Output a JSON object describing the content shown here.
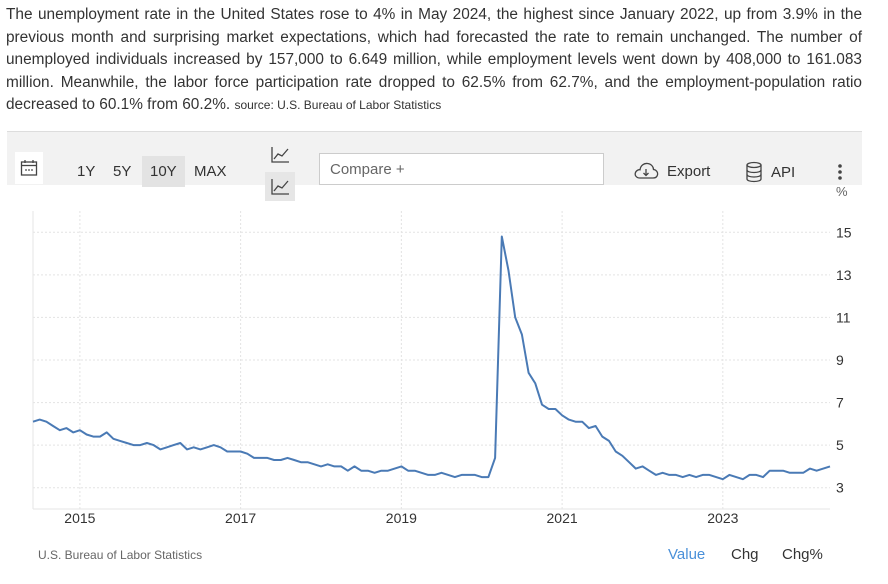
{
  "summary": {
    "text": "The unemployment rate in the United States rose to 4% in May 2024, the highest since January 2022, up from 3.9% in the previous month and surprising market expectations, which had forecasted the rate to remain unchanged. The number of unemployed individuals increased by 157,000 to 6.649 million, while employment levels went down by 408,000 to 161.083 million. Meanwhile, the labor force participation rate dropped to 62.5% from 62.7%, and the employment-population ratio decreased to 60.1% from 60.2%.",
    "source": "source: U.S. Bureau of Labor Statistics"
  },
  "toolbar": {
    "ranges": [
      "1Y",
      "5Y",
      "10Y",
      "MAX"
    ],
    "active_range": "10Y",
    "compare_placeholder": "Compare +",
    "export_label": "Export",
    "api_label": "API",
    "icons": {
      "calendar": "calendar-icon",
      "chart_type_line": "line-chart-icon",
      "export": "cloud-download-icon",
      "api": "database-icon",
      "more": "more-vertical-icon"
    }
  },
  "footer": {
    "source": "U.S. Bureau of Labor Statistics",
    "tabs": [
      "Value",
      "Chg",
      "Chg%"
    ],
    "active_tab": "Value"
  },
  "colors": {
    "line": "#4a7ab5",
    "accent": "#4a90d9",
    "toolbar_bg": "#f2f2f2"
  },
  "chart_data": {
    "type": "line",
    "title": "",
    "xlabel": "",
    "ylabel": "",
    "unit": "%",
    "ylim": [
      2,
      16
    ],
    "y_ticks": [
      3,
      5,
      7,
      9,
      11,
      13,
      15
    ],
    "x_ticks": [
      "2015",
      "2017",
      "2019",
      "2021",
      "2023"
    ],
    "xlim": [
      "2014-06",
      "2024-05"
    ],
    "grid": true,
    "series": [
      {
        "x": [
          "2014-06",
          "2014-07",
          "2014-08",
          "2014-09",
          "2014-10",
          "2014-11",
          "2014-12",
          "2015-01",
          "2015-02",
          "2015-03",
          "2015-04",
          "2015-05",
          "2015-06",
          "2015-07",
          "2015-08",
          "2015-09",
          "2015-10",
          "2015-11",
          "2015-12",
          "2016-01",
          "2016-02",
          "2016-03",
          "2016-04",
          "2016-05",
          "2016-06",
          "2016-07",
          "2016-08",
          "2016-09",
          "2016-10",
          "2016-11",
          "2016-12",
          "2017-01",
          "2017-02",
          "2017-03",
          "2017-04",
          "2017-05",
          "2017-06",
          "2017-07",
          "2017-08",
          "2017-09",
          "2017-10",
          "2017-11",
          "2017-12",
          "2018-01",
          "2018-02",
          "2018-03",
          "2018-04",
          "2018-05",
          "2018-06",
          "2018-07",
          "2018-08",
          "2018-09",
          "2018-10",
          "2018-11",
          "2018-12",
          "2019-01",
          "2019-02",
          "2019-03",
          "2019-04",
          "2019-05",
          "2019-06",
          "2019-07",
          "2019-08",
          "2019-09",
          "2019-10",
          "2019-11",
          "2019-12",
          "2020-01",
          "2020-02",
          "2020-03",
          "2020-04",
          "2020-05",
          "2020-06",
          "2020-07",
          "2020-08",
          "2020-09",
          "2020-10",
          "2020-11",
          "2020-12",
          "2021-01",
          "2021-02",
          "2021-03",
          "2021-04",
          "2021-05",
          "2021-06",
          "2021-07",
          "2021-08",
          "2021-09",
          "2021-10",
          "2021-11",
          "2021-12",
          "2022-01",
          "2022-02",
          "2022-03",
          "2022-04",
          "2022-05",
          "2022-06",
          "2022-07",
          "2022-08",
          "2022-09",
          "2022-10",
          "2022-11",
          "2022-12",
          "2023-01",
          "2023-02",
          "2023-03",
          "2023-04",
          "2023-05",
          "2023-06",
          "2023-07",
          "2023-08",
          "2023-09",
          "2023-10",
          "2023-11",
          "2023-12",
          "2024-01",
          "2024-02",
          "2024-03",
          "2024-04",
          "2024-05"
        ],
        "values": [
          6.1,
          6.2,
          6.1,
          5.9,
          5.7,
          5.8,
          5.6,
          5.7,
          5.5,
          5.4,
          5.4,
          5.6,
          5.3,
          5.2,
          5.1,
          5.0,
          5.0,
          5.1,
          5.0,
          4.8,
          4.9,
          5.0,
          5.1,
          4.8,
          4.9,
          4.8,
          4.9,
          5.0,
          4.9,
          4.7,
          4.7,
          4.7,
          4.6,
          4.4,
          4.4,
          4.4,
          4.3,
          4.3,
          4.4,
          4.3,
          4.2,
          4.2,
          4.1,
          4.0,
          4.1,
          4.0,
          4.0,
          3.8,
          4.0,
          3.8,
          3.8,
          3.7,
          3.8,
          3.8,
          3.9,
          4.0,
          3.8,
          3.8,
          3.7,
          3.6,
          3.6,
          3.7,
          3.6,
          3.5,
          3.6,
          3.6,
          3.6,
          3.5,
          3.5,
          4.4,
          14.8,
          13.2,
          11.0,
          10.2,
          8.4,
          7.9,
          6.9,
          6.7,
          6.7,
          6.4,
          6.2,
          6.1,
          6.1,
          5.8,
          5.9,
          5.4,
          5.2,
          4.7,
          4.5,
          4.2,
          3.9,
          4.0,
          3.8,
          3.6,
          3.7,
          3.6,
          3.6,
          3.5,
          3.6,
          3.5,
          3.6,
          3.6,
          3.5,
          3.4,
          3.6,
          3.5,
          3.4,
          3.6,
          3.6,
          3.5,
          3.8,
          3.8,
          3.8,
          3.7,
          3.7,
          3.7,
          3.9,
          3.8,
          3.9,
          4.0
        ]
      }
    ]
  }
}
